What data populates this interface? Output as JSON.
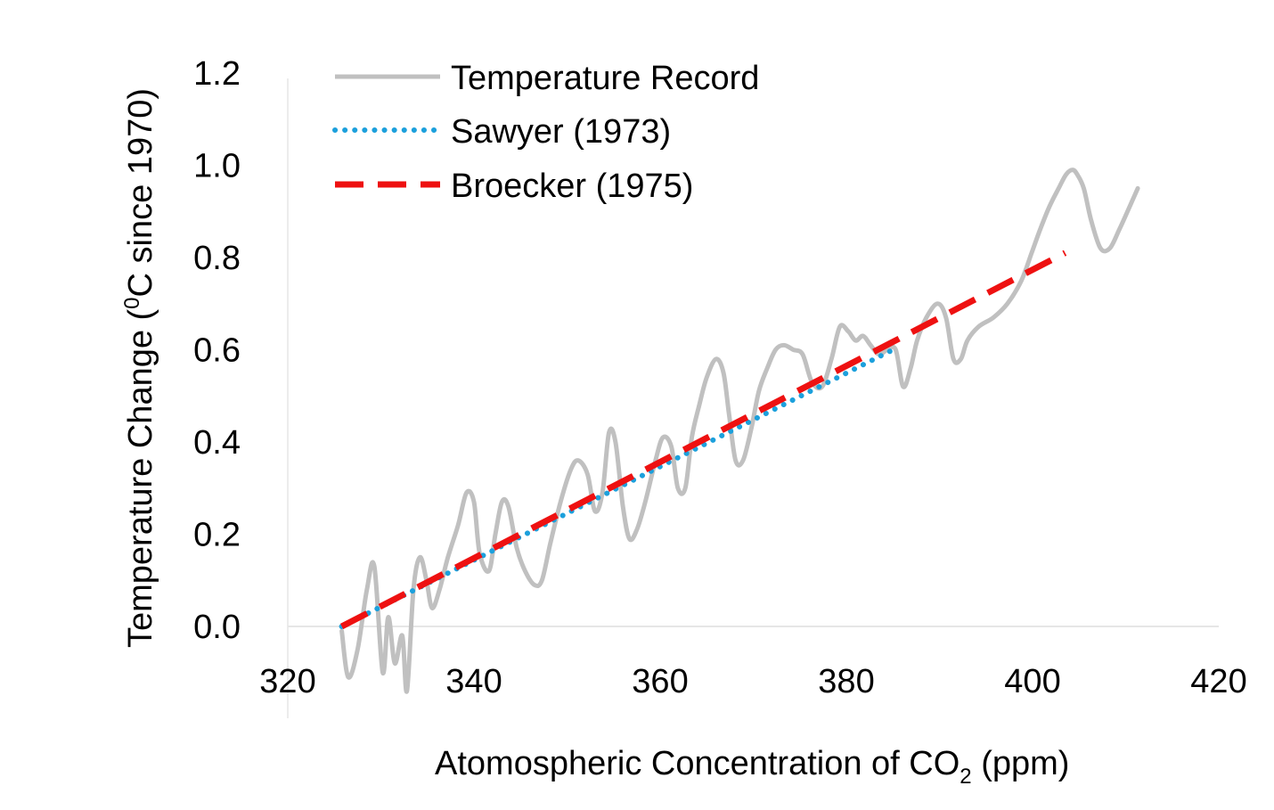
{
  "chart_data": {
    "type": "line",
    "title": "",
    "xlabel": "Atomospheric Concentration of CO",
    "xlabel_sub": "2",
    "xlabel_tail": " (ppm)",
    "ylabel": "Temperature Change (",
    "ylabel_sup": "0",
    "ylabel_tail": "C since 1970)",
    "xlim": [
      320,
      420
    ],
    "ylim": [
      -0.2,
      1.2
    ],
    "xticks": [
      320,
      340,
      360,
      380,
      400,
      420
    ],
    "xtick_labels": [
      "320",
      "340",
      "360",
      "380",
      "400",
      "420"
    ],
    "yticks": [
      0.0,
      0.2,
      0.4,
      0.6,
      0.8,
      1.0,
      1.2
    ],
    "ytick_labels": [
      "0.0",
      "0.2",
      "0.4",
      "0.6",
      "0.8",
      "1.0",
      "1.2"
    ],
    "grid": false,
    "legend_position": "top-left",
    "series": [
      {
        "name": "Temperature Record",
        "style": "solid",
        "color": "#c0c0c0",
        "x": [
          325.8,
          326.5,
          327.5,
          328.5,
          329.3,
          330.2,
          330.8,
          331.5,
          332.3,
          332.8,
          333.5,
          334.2,
          334.9,
          335.5,
          336.3,
          337.2,
          338.3,
          339.2,
          340.0,
          340.6,
          341.6,
          342.3,
          343.0,
          343.7,
          344.6,
          345.5,
          346.5,
          347.3,
          348.2,
          349.3,
          350.4,
          351.2,
          352.2,
          353.0,
          353.8,
          354.5,
          355.2,
          356.0,
          356.7,
          357.5,
          358.4,
          359.5,
          360.3,
          361.2,
          361.9,
          362.7,
          363.4,
          364.2,
          365.0,
          366.0,
          366.8,
          367.4,
          368.1,
          368.9,
          369.8,
          370.6,
          371.5,
          372.4,
          373.3,
          374.3,
          375.3,
          376.3,
          377.4,
          378.4,
          379.3,
          380.2,
          381.0,
          381.8,
          382.6,
          383.5,
          384.4,
          385.3,
          386.1,
          386.9,
          387.6,
          388.6,
          389.8,
          390.7,
          391.5,
          392.3,
          393.0,
          394.2,
          395.8,
          397.3,
          398.8,
          399.9,
          400.8,
          401.8,
          402.8,
          403.6,
          404.3,
          404.8,
          405.5,
          406.3,
          407.3,
          408.3,
          409.3,
          410.2,
          411.3
        ],
        "values": [
          -0.01,
          -0.11,
          -0.05,
          0.08,
          0.13,
          -0.1,
          0.02,
          -0.08,
          -0.02,
          -0.14,
          0.08,
          0.15,
          0.1,
          0.04,
          0.08,
          0.15,
          0.22,
          0.29,
          0.27,
          0.16,
          0.12,
          0.2,
          0.27,
          0.26,
          0.17,
          0.12,
          0.09,
          0.1,
          0.18,
          0.27,
          0.34,
          0.36,
          0.33,
          0.25,
          0.29,
          0.42,
          0.4,
          0.26,
          0.19,
          0.21,
          0.27,
          0.36,
          0.41,
          0.39,
          0.3,
          0.3,
          0.41,
          0.48,
          0.54,
          0.58,
          0.55,
          0.46,
          0.36,
          0.36,
          0.43,
          0.51,
          0.56,
          0.6,
          0.61,
          0.6,
          0.59,
          0.53,
          0.52,
          0.58,
          0.65,
          0.64,
          0.62,
          0.63,
          0.61,
          0.59,
          0.6,
          0.6,
          0.52,
          0.56,
          0.62,
          0.67,
          0.7,
          0.67,
          0.58,
          0.58,
          0.62,
          0.65,
          0.67,
          0.7,
          0.75,
          0.81,
          0.86,
          0.91,
          0.95,
          0.98,
          0.99,
          0.98,
          0.95,
          0.88,
          0.82,
          0.82,
          0.86,
          0.9,
          0.95
        ]
      },
      {
        "name": "Sawyer (1973)",
        "style": "dotted",
        "color": "#1ca0dc",
        "x": [
          325.8,
          385.0
        ],
        "values": [
          0.0,
          0.6
        ]
      },
      {
        "name": "Broecker (1975)",
        "style": "dashed",
        "color": "#ee1111",
        "x": [
          325.8,
          403.5
        ],
        "values": [
          0.0,
          0.81
        ]
      }
    ]
  }
}
